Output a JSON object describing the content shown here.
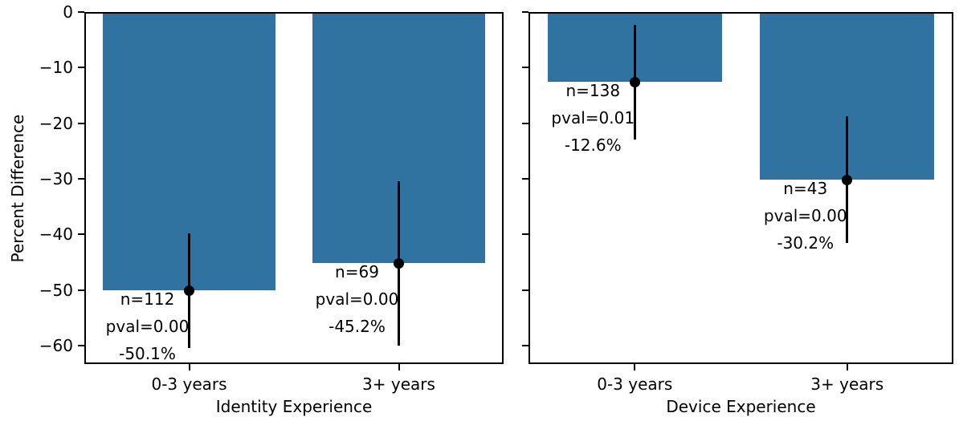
{
  "chart_data": {
    "type": "bar",
    "ylabel": "Percent Difference",
    "ylim": [
      -63.3,
      0
    ],
    "yticks": [
      0,
      -10,
      -20,
      -30,
      -40,
      -50,
      -60
    ],
    "yticklabels": [
      "0",
      "−10",
      "−20",
      "−30",
      "−40",
      "−50",
      "−60"
    ],
    "bar_color": "#3073a0",
    "text_color": "#000000",
    "legend": "none",
    "grid": false,
    "panels": [
      {
        "xlabel": "Identity Experience",
        "categories": [
          "0-3 years",
          "3+ years"
        ],
        "series": [
          {
            "category": "0-3 years",
            "value": -50.1,
            "err_high": -39.8,
            "err_low": -60.4,
            "n_label": "n=112",
            "pval_label": "pval=0.00",
            "pct_label": "-50.1%"
          },
          {
            "category": "3+ years",
            "value": -45.2,
            "err_high": -30.4,
            "err_low": -60.0,
            "n_label": "n=69",
            "pval_label": "pval=0.00",
            "pct_label": "-45.2%"
          }
        ]
      },
      {
        "xlabel": "Device Experience",
        "categories": [
          "0-3 years",
          "3+ years"
        ],
        "series": [
          {
            "category": "0-3 years",
            "value": -12.6,
            "err_high": -2.3,
            "err_low": -22.9,
            "n_label": "n=138",
            "pval_label": "pval=0.01",
            "pct_label": "-12.6%"
          },
          {
            "category": "3+ years",
            "value": -30.2,
            "err_high": -18.8,
            "err_low": -41.6,
            "n_label": "n=43",
            "pval_label": "pval=0.00",
            "pct_label": "-30.2%"
          }
        ]
      }
    ]
  }
}
